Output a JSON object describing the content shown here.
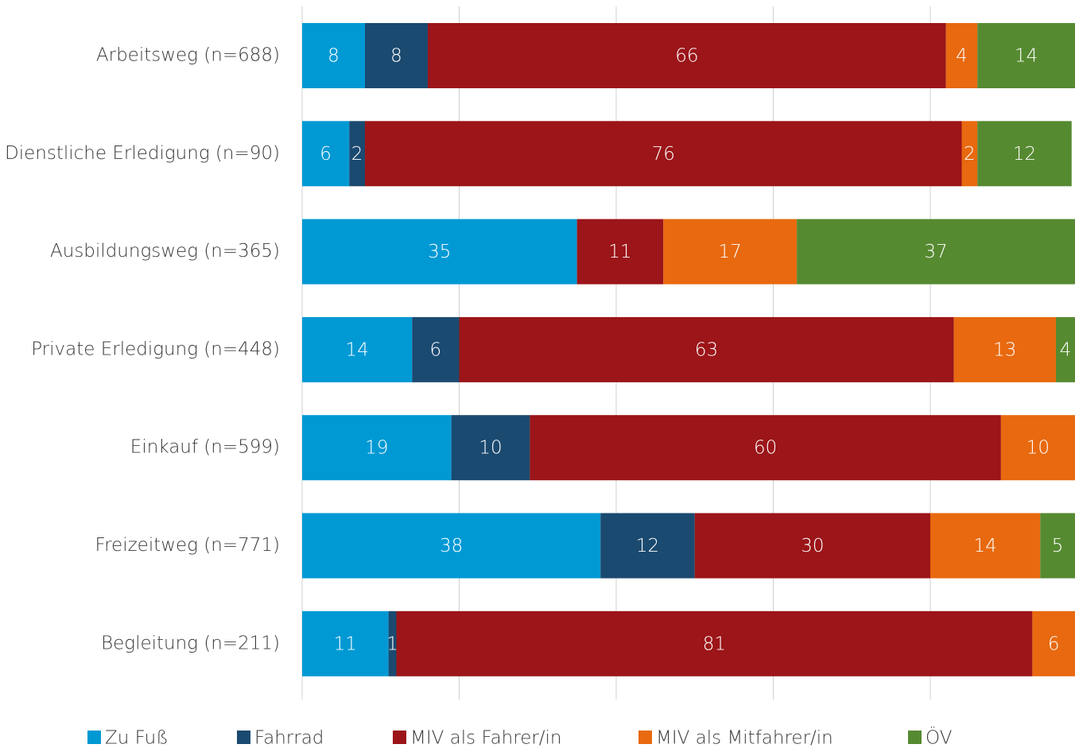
{
  "chart_data": {
    "type": "stacked_barh",
    "categories": [
      "Arbeitsweg (n=688)",
      "Dienstliche Erledigung (n=90)",
      "Ausbildungsweg (n=365)",
      "Private Erledigung (n=448)",
      "Einkauf (n=599)",
      "Freizeitweg (n=771)",
      "Begleitung (n=211)"
    ],
    "series": [
      {
        "name": "Zu Fuß",
        "color": "#0099d4",
        "values": [
          8,
          6,
          35,
          14,
          19,
          38,
          11
        ]
      },
      {
        "name": "Fahrrad",
        "color": "#1b4a70",
        "values": [
          8,
          2,
          null,
          6,
          10,
          12,
          1
        ]
      },
      {
        "name": "MIV als Fahrer/in",
        "color": "#9b1519",
        "values": [
          66,
          76,
          11,
          63,
          60,
          30,
          81
        ]
      },
      {
        "name": "MIV als Mitfahrer/in",
        "color": "#e8690f",
        "values": [
          4,
          2,
          17,
          13,
          10,
          14,
          6
        ]
      },
      {
        "name": "ÖV",
        "color": "#568a31",
        "values": [
          14,
          12,
          37,
          4,
          null,
          5,
          null
        ]
      }
    ],
    "xlim": [
      0,
      100
    ],
    "xticks": [
      0,
      20,
      40,
      60,
      80,
      100
    ],
    "grid": true
  }
}
